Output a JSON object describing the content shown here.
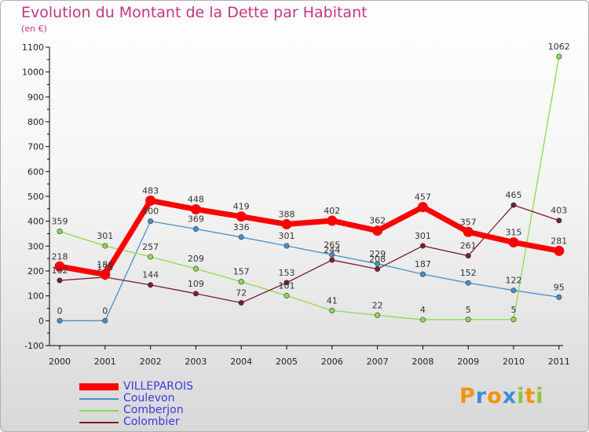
{
  "title": "Evolution du Montant de la Dette par Habitant",
  "unit": "(en €)",
  "logo": {
    "letters": [
      "P",
      "r",
      "o",
      "x",
      "i",
      "t",
      "i"
    ],
    "colors": [
      "#f29400",
      "#3c8fd6",
      "#f29400",
      "#3c8fd6",
      "#8dc63f",
      "#f29400",
      "#8dc63f"
    ]
  },
  "chart_data": {
    "type": "line",
    "title": "Evolution du Montant de la Dette par Habitant",
    "ylabel": "(en €)",
    "x": [
      "2000",
      "2001",
      "2002",
      "2003",
      "2004",
      "2005",
      "2006",
      "2007",
      "2008",
      "2009",
      "2010",
      "2011"
    ],
    "ylim": [
      -100,
      1100
    ],
    "yticks": [
      -100,
      0,
      100,
      200,
      300,
      400,
      500,
      600,
      700,
      800,
      900,
      1000,
      1100
    ],
    "grid": false,
    "legend": "bottom-left",
    "series": [
      {
        "name": "VILLEPAROIS",
        "color": "#ff0000",
        "width": 7,
        "values": [
          218,
          186,
          483,
          448,
          419,
          388,
          402,
          362,
          457,
          357,
          315,
          281
        ]
      },
      {
        "name": "Coulevon",
        "color": "#4a90c8",
        "width": 1.3,
        "values": [
          0,
          0,
          400,
          369,
          336,
          301,
          265,
          229,
          187,
          152,
          122,
          95
        ]
      },
      {
        "name": "Comberjon",
        "color": "#8fd94f",
        "width": 1.3,
        "values": [
          359,
          301,
          257,
          209,
          157,
          101,
          41,
          22,
          4,
          5,
          5,
          1062
        ]
      },
      {
        "name": "Colombier",
        "color": "#7a1f2a",
        "width": 1.3,
        "values": [
          162,
          175,
          144,
          109,
          72,
          153,
          244,
          208,
          301,
          261,
          465,
          403
        ]
      }
    ]
  }
}
